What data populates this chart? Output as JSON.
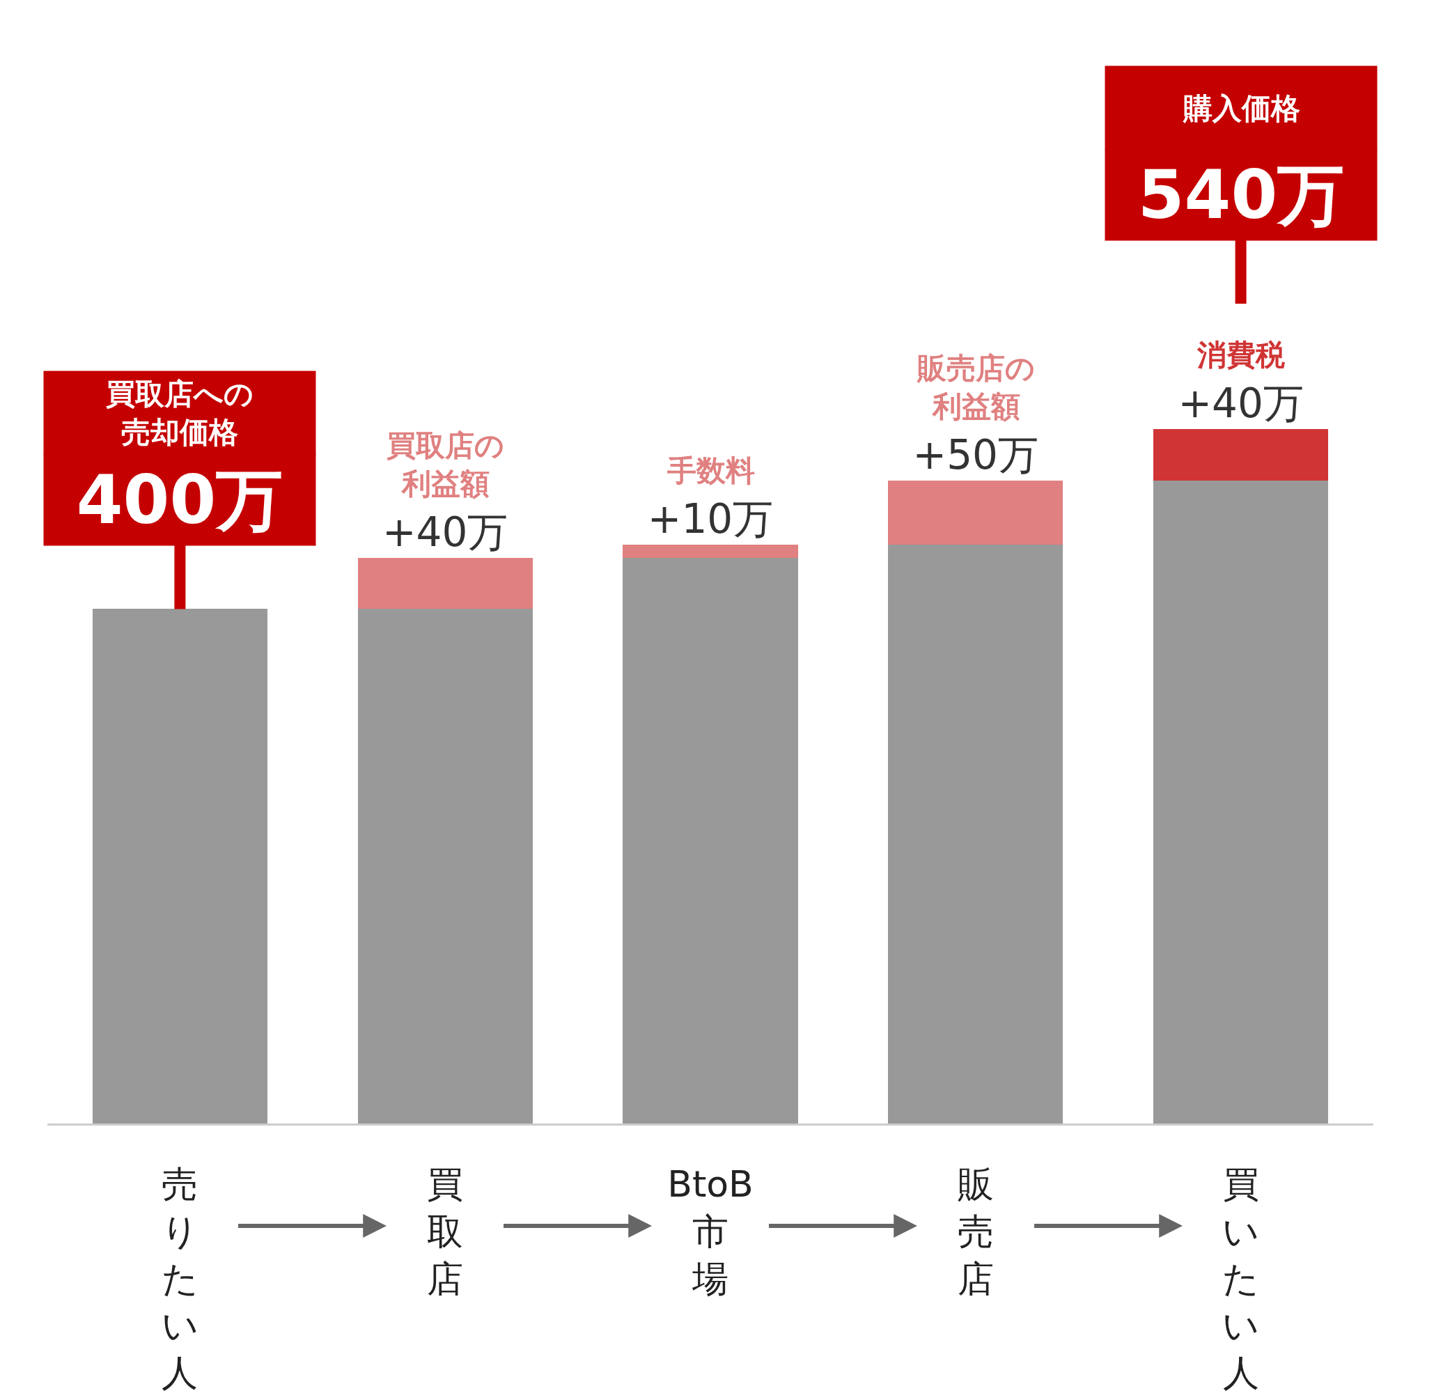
{
  "chart_data": {
    "type": "bar",
    "stacked": true,
    "tick_labels": "x",
    "categories": [
      "売りたい人",
      "買取店",
      "BtoB 市場",
      "販売店",
      "買いたい人"
    ],
    "series": [
      {
        "color": "#999999",
        "values": [
          400,
          400,
          440,
          450,
          500
        ]
      },
      {
        "colors": [
          "#e08080",
          "#e08080",
          "#e08080",
          "#e08080",
          "#d03434"
        ],
        "values": [
          null,
          40,
          10,
          50,
          40
        ],
        "value_labels": [
          null,
          "+40万",
          "+10万",
          "+50万",
          "+40万"
        ]
      }
    ],
    "totals": [
      "400万",
      null,
      null,
      null,
      "540万"
    ],
    "annotations": [
      {
        "text": "買取店への売却価格",
        "x": "売りたい人",
        "y": 400
      },
      {
        "text": "買取店の利益額",
        "x": "買取店",
        "y": 440
      },
      {
        "text": "手数料",
        "x": "BtoB 市場",
        "y": 450
      },
      {
        "text": "販売店の利益額",
        "x": "販売店",
        "y": 500
      },
      {
        "text": "消費税",
        "x": "買いたい人",
        "y": 540
      },
      {
        "text": "購入価格",
        "x": "買いたい人"
      }
    ]
  }
}
